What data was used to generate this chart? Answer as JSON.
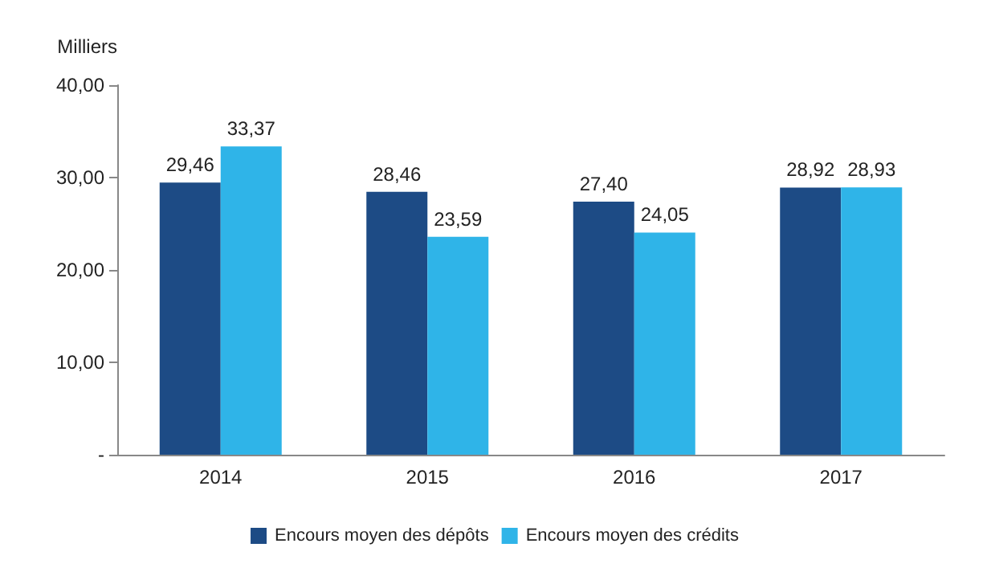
{
  "chart_data": {
    "type": "bar",
    "ylabel": "Milliers",
    "categories": [
      "2014",
      "2015",
      "2016",
      "2017"
    ],
    "series": [
      {
        "name": "Encours moyen des dépôts",
        "color": "#1d4b85",
        "values": [
          29.46,
          28.46,
          27.4,
          28.92
        ],
        "value_labels": [
          "29,46",
          "28,46",
          "27,40",
          "28,92"
        ]
      },
      {
        "name": "Encours moyen des crédits",
        "color": "#2fb4e8",
        "values": [
          33.37,
          23.59,
          24.05,
          28.93
        ],
        "value_labels": [
          "33,37",
          "23,59",
          "24,05",
          "28,93"
        ]
      }
    ],
    "ylim": [
      0,
      40
    ],
    "yticks": [
      {
        "value": 0,
        "label": "-"
      },
      {
        "value": 10,
        "label": "10,00"
      },
      {
        "value": 20,
        "label": "20,00"
      },
      {
        "value": 30,
        "label": "30,00"
      },
      {
        "value": 40,
        "label": "40,00"
      }
    ],
    "grid": false,
    "legend": "bottom"
  }
}
